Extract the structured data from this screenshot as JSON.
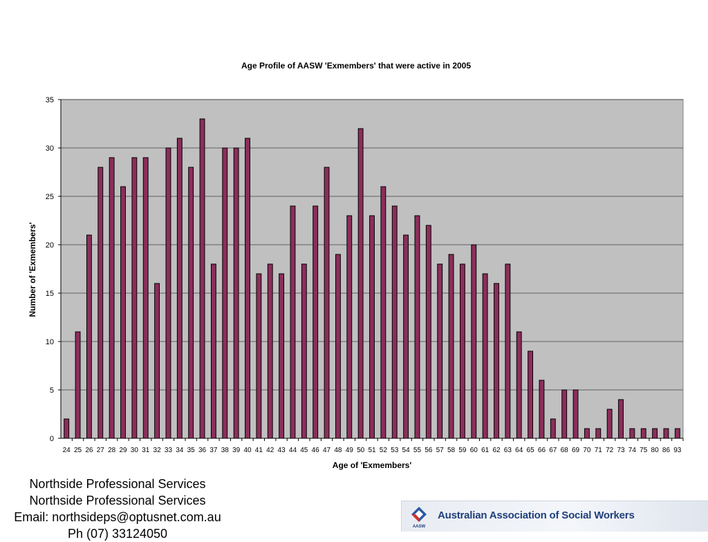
{
  "chart_data": {
    "type": "bar",
    "title": "Age Profile of AASW 'Exmembers' that were active in 2005",
    "xlabel": "Age of 'Exmembers'",
    "ylabel": "Number of 'Exmembers'",
    "ylim": [
      0,
      35
    ],
    "yticks": [
      0,
      5,
      10,
      15,
      20,
      25,
      30,
      35
    ],
    "grid": true,
    "legend": "none",
    "bar_color": "#8b2e5a",
    "plot_bg": "#c0c0c0",
    "categories": [
      "24",
      "25",
      "26",
      "27",
      "28",
      "29",
      "30",
      "31",
      "32",
      "33",
      "34",
      "35",
      "36",
      "37",
      "38",
      "39",
      "40",
      "41",
      "42",
      "43",
      "44",
      "45",
      "46",
      "47",
      "48",
      "49",
      "50",
      "51",
      "52",
      "53",
      "54",
      "55",
      "56",
      "57",
      "58",
      "59",
      "60",
      "61",
      "62",
      "63",
      "64",
      "65",
      "66",
      "67",
      "68",
      "69",
      "70",
      "71",
      "72",
      "73",
      "74",
      "75",
      "80",
      "86",
      "93"
    ],
    "values": [
      2,
      11,
      21,
      28,
      29,
      26,
      29,
      29,
      16,
      30,
      31,
      28,
      33,
      18,
      30,
      30,
      31,
      17,
      18,
      17,
      24,
      18,
      24,
      28,
      19,
      23,
      32,
      23,
      26,
      24,
      21,
      23,
      22,
      18,
      19,
      18,
      20,
      17,
      16,
      18,
      11,
      9,
      6,
      2,
      5,
      5,
      1,
      1,
      3,
      4,
      1,
      1,
      1,
      1,
      1
    ]
  },
  "footer": {
    "line1": "Northside Professional Services",
    "line2": "Northside Professional Services",
    "line3": "Email: northsideps@optusnet.com.au",
    "line4": "Ph (07) 33124050"
  },
  "logo": {
    "name": "Australian Association of Social Workers",
    "mark_text": "AASW",
    "icon": "aasw-logo-icon"
  }
}
